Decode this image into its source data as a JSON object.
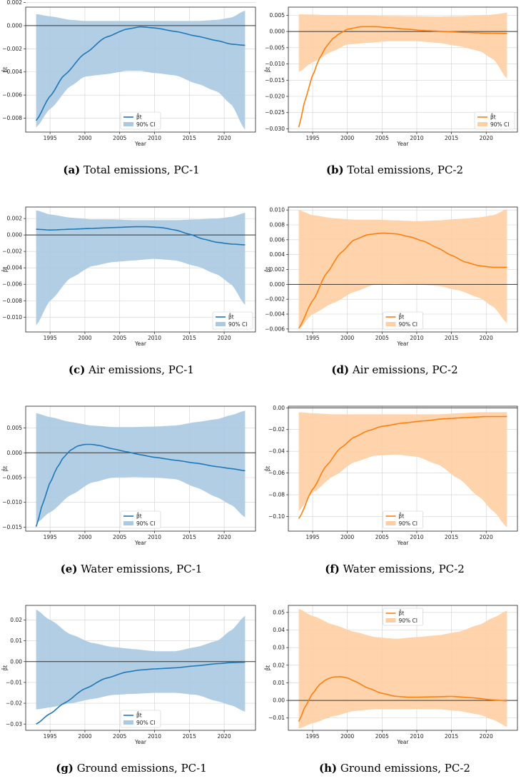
{
  "captions": [
    {
      "tag": "(a)",
      "text": "Total emissions, PC-1"
    },
    {
      "tag": "(b)",
      "text": "Total emissions, PC-2"
    },
    {
      "tag": "(c)",
      "text": "Air emissions, PC-1"
    },
    {
      "tag": "(d)",
      "text": "Air emissions, PC-2"
    },
    {
      "tag": "(e)",
      "text": "Water emissions, PC-1"
    },
    {
      "tag": "(f)",
      "text": "Water emissions, PC-2"
    },
    {
      "tag": "(g)",
      "text": "Ground emissions, PC-1"
    },
    {
      "tag": "(h)",
      "text": "Ground emissions, PC-2"
    }
  ],
  "colors": {
    "pc1_line": "#1f77b4",
    "pc1_fill": "#aac9e2",
    "pc2_line": "#ff7f0e",
    "pc2_fill": "#ffcfa3",
    "zero_line": "#333333",
    "grid": "#d0d0d0"
  },
  "chart_data": [
    {
      "type": "line",
      "panel": "a",
      "color": "pc1",
      "xlabel": "Year",
      "ylabel": "β̂t",
      "xlim": [
        1991.5,
        2024.5
      ],
      "ylim": [
        -0.0092,
        0.0016
      ],
      "xticks": [
        1995,
        2000,
        2005,
        2010,
        2015,
        2020
      ],
      "yticks": [
        -0.008,
        -0.006,
        -0.004,
        -0.002,
        0.0,
        0.002
      ],
      "ytick_labels": [
        "−0.008",
        "−0.006",
        "−0.004",
        "−0.002",
        "0.000",
        "0.002"
      ],
      "legend_pos": "bottom-center",
      "series": [
        {
          "name": "β̂t",
          "x": [
            1993,
            1995,
            1997,
            2000,
            2003,
            2006,
            2008,
            2010,
            2013,
            2016,
            2019,
            2021,
            2023
          ],
          "y": [
            -0.0082,
            -0.0061,
            -0.0043,
            -0.0024,
            -0.001,
            -0.0003,
            -0.0001,
            -0.0002,
            -0.0005,
            -0.0009,
            -0.0013,
            -0.0016,
            -0.0017
          ]
        },
        {
          "name": "90% CI",
          "x": [
            1993,
            1995,
            1998,
            2000,
            2003,
            2006,
            2008,
            2010,
            2013,
            2016,
            2019,
            2021,
            2023
          ],
          "lower": [
            -0.0088,
            -0.0072,
            -0.0052,
            -0.0044,
            -0.0042,
            -0.0039,
            -0.0039,
            -0.0041,
            -0.0043,
            -0.005,
            -0.0057,
            -0.0068,
            -0.009
          ],
          "upper": [
            0.001,
            0.0008,
            0.0005,
            0.0004,
            0.0004,
            0.0004,
            0.0004,
            0.0004,
            0.0004,
            0.0004,
            0.0005,
            0.0007,
            0.0013
          ]
        }
      ]
    },
    {
      "type": "line",
      "panel": "b",
      "color": "pc2",
      "xlabel": "Year",
      "ylabel": "β̂t",
      "xlim": [
        1991.5,
        2024.5
      ],
      "ylim": [
        -0.031,
        0.0075
      ],
      "xticks": [
        1995,
        2000,
        2005,
        2010,
        2015,
        2020
      ],
      "yticks": [
        -0.03,
        -0.025,
        -0.02,
        -0.015,
        -0.01,
        -0.005,
        0.0,
        0.005
      ],
      "ytick_labels": [
        "−0.030",
        "−0.025",
        "−0.020",
        "−0.015",
        "−0.010",
        "−0.005",
        "0.000",
        "0.005"
      ],
      "legend_pos": "bottom-right",
      "series": [
        {
          "name": "β̂t",
          "x": [
            1993,
            1994,
            1995,
            1996,
            1997,
            1998,
            1999,
            2000,
            2002,
            2004,
            2006,
            2008,
            2011,
            2014,
            2017,
            2020,
            2023
          ],
          "y": [
            -0.0295,
            -0.0205,
            -0.0135,
            -0.0082,
            -0.0045,
            -0.002,
            -0.0005,
            0.0007,
            0.0015,
            0.0015,
            0.0012,
            0.0008,
            0.0003,
            0.0,
            -0.0003,
            -0.0005,
            -0.0006
          ]
        },
        {
          "name": "90% CI",
          "x": [
            1993,
            1995,
            1998,
            2000,
            2003,
            2006,
            2010,
            2013,
            2016,
            2019,
            2021,
            2023
          ],
          "lower": [
            -0.0125,
            -0.0095,
            -0.006,
            -0.004,
            -0.0035,
            -0.003,
            -0.003,
            -0.0035,
            -0.0045,
            -0.006,
            -0.0085,
            -0.0145
          ],
          "upper": [
            0.0053,
            0.0052,
            0.005,
            0.0049,
            0.0049,
            0.0048,
            0.0047,
            0.0046,
            0.0047,
            0.0049,
            0.0052,
            0.0058
          ]
        }
      ]
    },
    {
      "type": "line",
      "panel": "c",
      "color": "pc1",
      "xlabel": "Year",
      "ylabel": "β̂t",
      "xlim": [
        1991.5,
        2024.5
      ],
      "ylim": [
        -0.0118,
        0.0034
      ],
      "xticks": [
        1995,
        2000,
        2005,
        2010,
        2015,
        2020
      ],
      "yticks": [
        -0.01,
        -0.008,
        -0.006,
        -0.004,
        -0.002,
        0.0,
        0.002
      ],
      "ytick_labels": [
        "−0.010",
        "−0.008",
        "−0.006",
        "−0.004",
        "−0.002",
        "0.000",
        "0.002"
      ],
      "legend_pos": "bottom-right",
      "series": [
        {
          "name": "β̂t",
          "x": [
            1993,
            1995,
            1998,
            2001,
            2004,
            2007,
            2009,
            2011,
            2013,
            2015,
            2017,
            2019,
            2021,
            2023
          ],
          "y": [
            0.0007,
            0.0006,
            0.0007,
            0.0008,
            0.0009,
            0.001,
            0.001,
            0.0009,
            0.0006,
            0.0001,
            -0.0005,
            -0.0009,
            -0.0011,
            -0.0012
          ]
        },
        {
          "name": "90% CI",
          "x": [
            1993,
            1995,
            1998,
            2001,
            2004,
            2007,
            2010,
            2013,
            2016,
            2019,
            2021,
            2023
          ],
          "lower": [
            -0.011,
            -0.008,
            -0.0052,
            -0.0038,
            -0.0033,
            -0.0031,
            -0.0029,
            -0.0031,
            -0.0038,
            -0.0048,
            -0.006,
            -0.0085
          ],
          "upper": [
            0.003,
            0.0025,
            0.0021,
            0.0019,
            0.0019,
            0.0018,
            0.0018,
            0.0018,
            0.0019,
            0.002,
            0.0022,
            0.0027
          ]
        }
      ]
    },
    {
      "type": "line",
      "panel": "d",
      "color": "pc2",
      "xlabel": "Year",
      "ylabel": "β̂t",
      "xlim": [
        1991.5,
        2024.5
      ],
      "ylim": [
        -0.0064,
        0.0104
      ],
      "xticks": [
        1995,
        2000,
        2005,
        2010,
        2015,
        2020
      ],
      "yticks": [
        -0.006,
        -0.004,
        -0.002,
        0.0,
        0.002,
        0.004,
        0.006,
        0.008,
        0.01
      ],
      "ytick_labels": [
        "−0.006",
        "−0.004",
        "−0.002",
        "0.000",
        "0.002",
        "0.004",
        "0.006",
        "0.008",
        "0.010"
      ],
      "legend_pos": "bottom-center",
      "series": [
        {
          "name": "β̂t",
          "x": [
            1993,
            1995,
            1997,
            1999,
            2001,
            2003,
            2005,
            2007,
            2009,
            2011,
            2013,
            2015,
            2017,
            2019,
            2021,
            2023
          ],
          "y": [
            -0.0059,
            -0.0022,
            0.0015,
            0.0042,
            0.006,
            0.0067,
            0.0069,
            0.0068,
            0.0064,
            0.0058,
            0.0049,
            0.0039,
            0.003,
            0.0025,
            0.0023,
            0.0023
          ]
        },
        {
          "name": "90% CI",
          "x": [
            1993,
            1995,
            1998,
            2001,
            2004,
            2007,
            2010,
            2013,
            2016,
            2019,
            2021,
            2023
          ],
          "lower": [
            -0.006,
            -0.004,
            -0.0025,
            -0.001,
            0.0,
            0.0001,
            0.0,
            -0.0002,
            -0.0008,
            -0.0018,
            -0.003,
            -0.0052
          ],
          "upper": [
            0.01,
            0.0093,
            0.0089,
            0.0087,
            0.0087,
            0.0086,
            0.0085,
            0.0086,
            0.0088,
            0.009,
            0.0093,
            0.0101
          ]
        }
      ]
    },
    {
      "type": "line",
      "panel": "e",
      "color": "pc1",
      "xlabel": "Year",
      "ylabel": "β̂t",
      "xlim": [
        1991.5,
        2024.5
      ],
      "ylim": [
        -0.0158,
        0.0094
      ],
      "xticks": [
        1995,
        2000,
        2005,
        2010,
        2015,
        2020
      ],
      "yticks": [
        -0.015,
        -0.01,
        -0.005,
        0.0,
        0.005
      ],
      "ytick_labels": [
        "−0.015",
        "−0.010",
        "−0.005",
        "0.000",
        "0.005"
      ],
      "legend_pos": "bottom-center",
      "series": [
        {
          "name": "β̂t",
          "x": [
            1993,
            1994,
            1995,
            1996,
            1997,
            1998,
            1999,
            2000,
            2001,
            2002,
            2004,
            2006,
            2008,
            2010,
            2013,
            2016,
            2019,
            2021,
            2023
          ],
          "y": [
            -0.0149,
            -0.01,
            -0.006,
            -0.003,
            -0.0008,
            0.0006,
            0.0014,
            0.0017,
            0.0017,
            0.0015,
            0.0008,
            0.0002,
            -0.0004,
            -0.0009,
            -0.0015,
            -0.0021,
            -0.0028,
            -0.0032,
            -0.0036
          ]
        },
        {
          "name": "90% CI",
          "x": [
            1993,
            1995,
            1998,
            2001,
            2004,
            2007,
            2010,
            2013,
            2016,
            2019,
            2021,
            2023
          ],
          "lower": [
            -0.0142,
            -0.012,
            -0.0085,
            -0.006,
            -0.005,
            -0.0049,
            -0.005,
            -0.0053,
            -0.007,
            -0.009,
            -0.0105,
            -0.013
          ],
          "upper": [
            0.008,
            0.0072,
            0.0062,
            0.0055,
            0.0052,
            0.0052,
            0.0053,
            0.0055,
            0.0062,
            0.0068,
            0.0076,
            0.0085
          ]
        }
      ]
    },
    {
      "type": "line",
      "panel": "f",
      "color": "pc2",
      "xlabel": "Year",
      "ylabel": "β̂t",
      "xlim": [
        1991.5,
        2024.5
      ],
      "ylim": [
        -0.1135,
        0.0015
      ],
      "xticks": [
        1995,
        2000,
        2005,
        2010,
        2015,
        2020
      ],
      "yticks": [
        -0.1,
        -0.08,
        -0.06,
        -0.04,
        -0.02,
        0.0
      ],
      "ytick_labels": [
        "−0.10",
        "−0.08",
        "−0.06",
        "−0.04",
        "−0.02",
        "0.00"
      ],
      "legend_pos": "bottom-center",
      "series": [
        {
          "name": "β̂t",
          "x": [
            1993,
            1995,
            1997,
            1999,
            2001,
            2003,
            2005,
            2008,
            2011,
            2014,
            2017,
            2020,
            2023
          ],
          "y": [
            -0.102,
            -0.075,
            -0.053,
            -0.037,
            -0.027,
            -0.021,
            -0.017,
            -0.014,
            -0.012,
            -0.01,
            -0.009,
            -0.008,
            -0.008
          ]
        },
        {
          "name": "90% CI",
          "x": [
            1993,
            1995,
            1998,
            2001,
            2004,
            2007,
            2010,
            2013,
            2016,
            2019,
            2021,
            2023
          ],
          "lower": [
            -0.095,
            -0.078,
            -0.063,
            -0.05,
            -0.044,
            -0.043,
            -0.045,
            -0.052,
            -0.065,
            -0.082,
            -0.095,
            -0.11
          ],
          "upper": [
            -0.004,
            -0.005,
            -0.006,
            -0.006,
            -0.006,
            -0.006,
            -0.006,
            -0.006,
            -0.005,
            -0.004,
            -0.004,
            -0.004
          ]
        }
      ]
    },
    {
      "type": "line",
      "panel": "g",
      "color": "pc1",
      "xlabel": "Year",
      "ylabel": "β̂t",
      "xlim": [
        1991.5,
        2024.5
      ],
      "ylim": [
        -0.033,
        0.027
      ],
      "xticks": [
        1995,
        2000,
        2005,
        2010,
        2015,
        2020
      ],
      "yticks": [
        -0.03,
        -0.02,
        -0.01,
        0.0,
        0.01,
        0.02
      ],
      "ytick_labels": [
        "−0.03",
        "−0.02",
        "−0.01",
        "0.00",
        "0.01",
        "0.02"
      ],
      "legend_pos": "bottom-center",
      "series": [
        {
          "name": "β̂t",
          "x": [
            1993,
            1995,
            1997,
            2000,
            2003,
            2006,
            2008,
            2010,
            2013,
            2016,
            2019,
            2021,
            2023
          ],
          "y": [
            -0.03,
            -0.025,
            -0.02,
            -0.013,
            -0.008,
            -0.005,
            -0.004,
            -0.0035,
            -0.003,
            -0.002,
            -0.001,
            -0.0005,
            -0.0003
          ]
        },
        {
          "name": "90% CI",
          "x": [
            1993,
            1995,
            1998,
            2001,
            2004,
            2007,
            2010,
            2013,
            2016,
            2019,
            2021,
            2023
          ],
          "lower": [
            -0.023,
            -0.022,
            -0.02,
            -0.018,
            -0.016,
            -0.0155,
            -0.015,
            -0.015,
            -0.016,
            -0.019,
            -0.021,
            -0.024
          ],
          "upper": [
            0.025,
            0.02,
            0.013,
            0.009,
            0.007,
            0.006,
            0.005,
            0.005,
            0.007,
            0.01,
            0.015,
            0.022
          ]
        }
      ]
    },
    {
      "type": "line",
      "panel": "h",
      "color": "pc2",
      "xlabel": "Year",
      "ylabel": "β̂t",
      "xlim": [
        1991.5,
        2024.5
      ],
      "ylim": [
        -0.017,
        0.054
      ],
      "xticks": [
        1995,
        2000,
        2005,
        2010,
        2015,
        2020
      ],
      "yticks": [
        -0.01,
        0.0,
        0.01,
        0.02,
        0.03,
        0.04,
        0.05
      ],
      "ytick_labels": [
        "−0.01",
        "0.00",
        "0.01",
        "0.02",
        "0.03",
        "0.04",
        "0.05"
      ],
      "legend_pos": "top-center",
      "series": [
        {
          "name": "β̂t",
          "x": [
            1993,
            1994,
            1995,
            1996,
            1997,
            1998,
            1999,
            2000,
            2001,
            2003,
            2005,
            2007,
            2009,
            2012,
            2015,
            2018,
            2021,
            2023
          ],
          "y": [
            -0.012,
            -0.003,
            0.004,
            0.009,
            0.012,
            0.0133,
            0.0135,
            0.0128,
            0.011,
            0.007,
            0.004,
            0.0023,
            0.0018,
            0.002,
            0.0023,
            0.0015,
            0.0003,
            -0.0003
          ]
        },
        {
          "name": "90% CI",
          "x": [
            1993,
            1995,
            1998,
            2001,
            2004,
            2007,
            2010,
            2013,
            2016,
            2019,
            2021,
            2023
          ],
          "lower": [
            -0.016,
            -0.013,
            -0.009,
            -0.006,
            -0.005,
            -0.005,
            -0.005,
            -0.005,
            -0.006,
            -0.008,
            -0.011,
            -0.015
          ],
          "upper": [
            0.052,
            0.048,
            0.043,
            0.039,
            0.036,
            0.035,
            0.036,
            0.037,
            0.039,
            0.043,
            0.047,
            0.051
          ]
        }
      ]
    }
  ]
}
